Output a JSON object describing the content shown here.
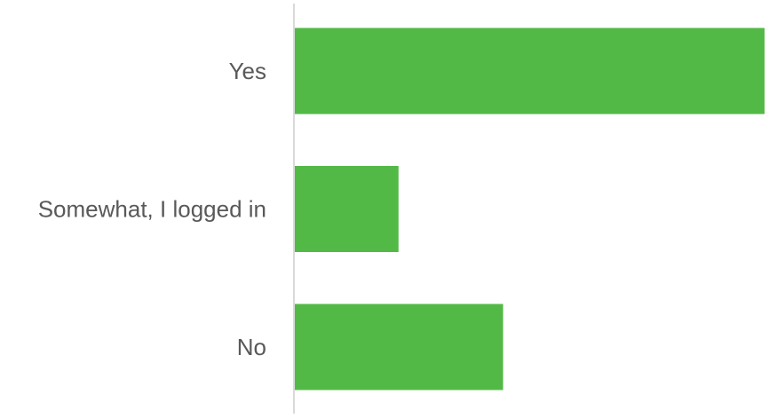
{
  "chart_data": {
    "type": "bar",
    "orientation": "horizontal",
    "categories": [
      "Yes",
      "Somewhat, I logged in",
      "No"
    ],
    "values": [
      9,
      2,
      4
    ],
    "xlim": [
      0,
      9
    ],
    "grid": false,
    "legend": "none",
    "title": "",
    "xlabel": "",
    "ylabel": "",
    "colors": {
      "bar": "#53B946",
      "axis": "#D9D9D9",
      "label": "#595959"
    }
  }
}
